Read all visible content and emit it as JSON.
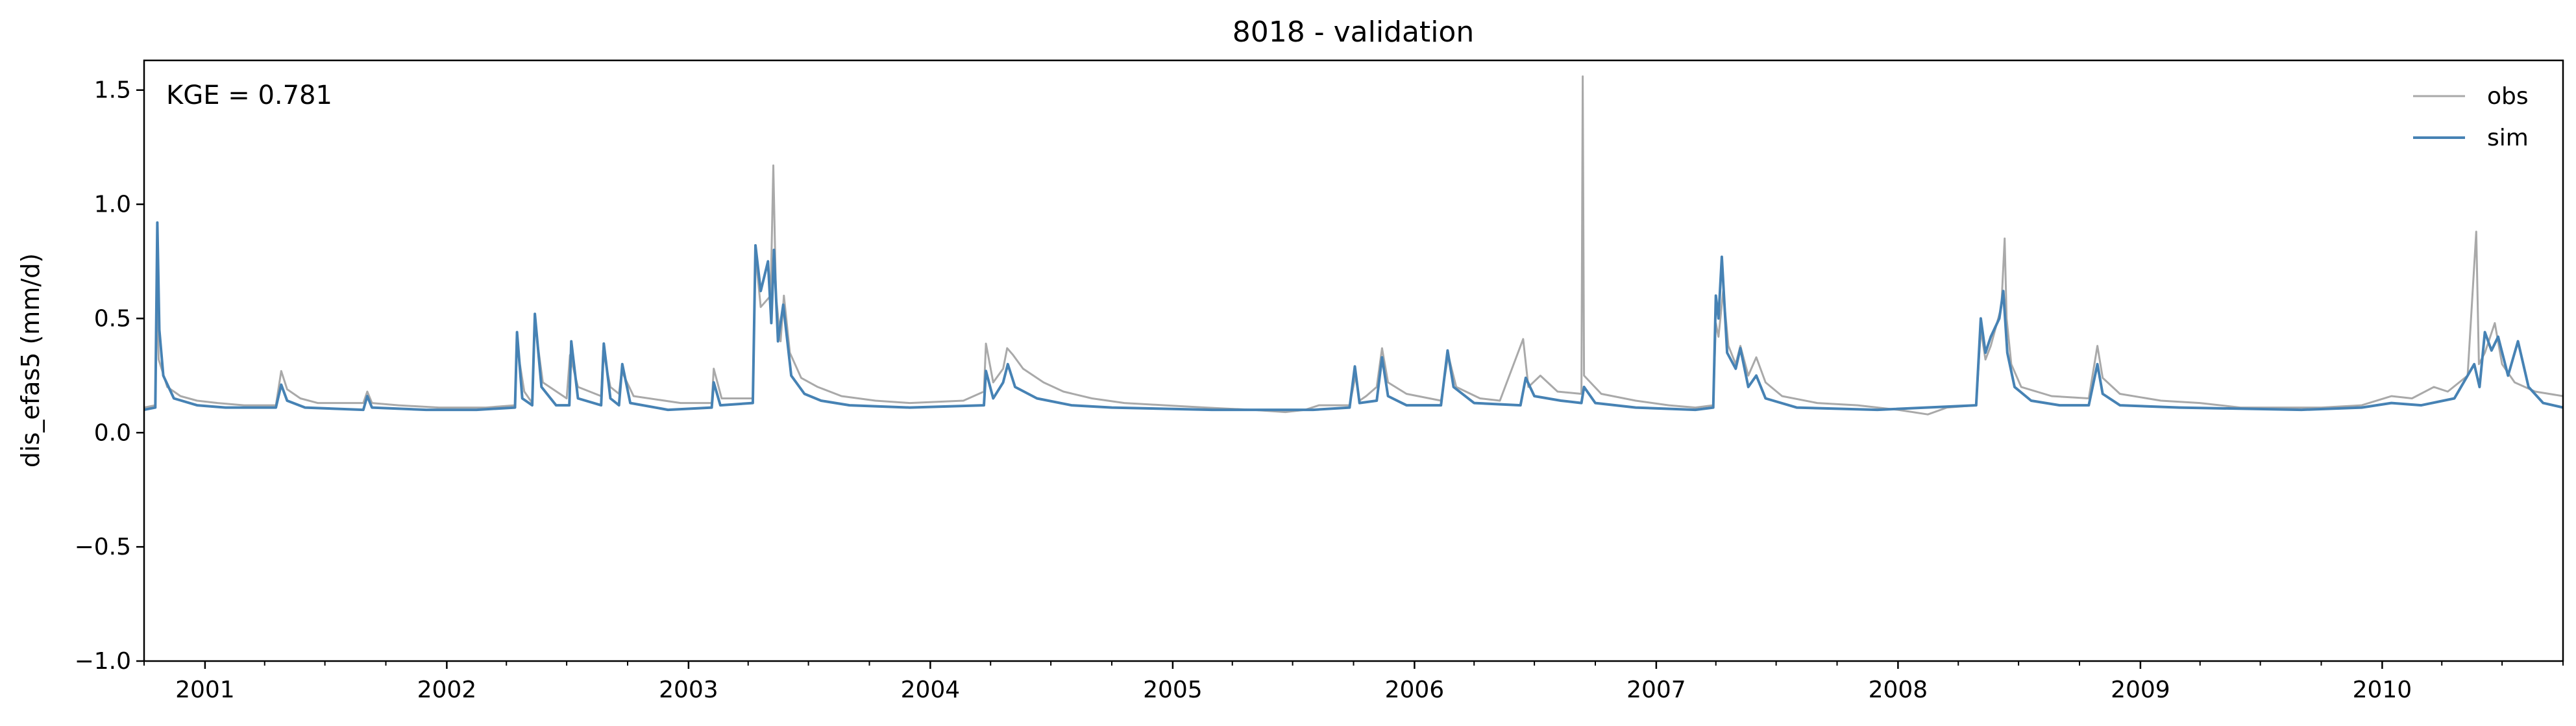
{
  "chart_data": {
    "type": "line",
    "title": "8018 - validation",
    "xlabel": "",
    "ylabel": "dis_efas5 (mm/d)",
    "annotation": "KGE = 0.781",
    "xlim": [
      "2000-10-01",
      "2010-10-01"
    ],
    "ylim": [
      -1.0,
      1.63
    ],
    "yticks": [
      -1.0,
      -0.5,
      0.0,
      0.5,
      1.0,
      1.5
    ],
    "ytick_labels": [
      "−1.0",
      "−0.5",
      "0.0",
      "0.5",
      "1.0",
      "1.5"
    ],
    "xticks": [
      "2001-01-01",
      "2002-01-01",
      "2003-01-01",
      "2004-01-01",
      "2005-01-01",
      "2006-01-01",
      "2007-01-01",
      "2008-01-01",
      "2009-01-01",
      "2010-01-01"
    ],
    "xtick_labels": [
      "2001",
      "2002",
      "2003",
      "2004",
      "2005",
      "2006",
      "2007",
      "2008",
      "2009",
      "2010"
    ],
    "grid": false,
    "legend_position": "top-right",
    "series": [
      {
        "name": "obs",
        "color": "#a9a9a9",
        "points": [
          [
            "2000-10-01",
            0.11
          ],
          [
            "2000-10-18",
            0.12
          ],
          [
            "2000-10-20",
            0.62
          ],
          [
            "2000-10-23",
            0.32
          ],
          [
            "2000-11-05",
            0.2
          ],
          [
            "2000-11-25",
            0.16
          ],
          [
            "2000-12-20",
            0.14
          ],
          [
            "2001-01-20",
            0.13
          ],
          [
            "2001-03-01",
            0.12
          ],
          [
            "2001-04-18",
            0.12
          ],
          [
            "2001-04-26",
            0.27
          ],
          [
            "2001-05-05",
            0.19
          ],
          [
            "2001-05-25",
            0.15
          ],
          [
            "2001-06-20",
            0.13
          ],
          [
            "2001-08-28",
            0.13
          ],
          [
            "2001-09-03",
            0.18
          ],
          [
            "2001-09-10",
            0.13
          ],
          [
            "2001-10-20",
            0.12
          ],
          [
            "2001-12-20",
            0.11
          ],
          [
            "2002-03-01",
            0.11
          ],
          [
            "2002-04-14",
            0.12
          ],
          [
            "2002-04-17",
            0.38
          ],
          [
            "2002-04-28",
            0.18
          ],
          [
            "2002-05-10",
            0.13
          ],
          [
            "2002-05-14",
            0.48
          ],
          [
            "2002-05-26",
            0.22
          ],
          [
            "2002-07-01",
            0.15
          ],
          [
            "2002-07-06",
            0.34
          ],
          [
            "2002-07-18",
            0.2
          ],
          [
            "2002-08-22",
            0.16
          ],
          [
            "2002-08-25",
            0.36
          ],
          [
            "2002-09-05",
            0.2
          ],
          [
            "2002-09-18",
            0.17
          ],
          [
            "2002-09-22",
            0.27
          ],
          [
            "2002-10-10",
            0.16
          ],
          [
            "2002-12-20",
            0.13
          ],
          [
            "2003-02-05",
            0.13
          ],
          [
            "2003-02-08",
            0.28
          ],
          [
            "2003-02-20",
            0.15
          ],
          [
            "2003-04-08",
            0.15
          ],
          [
            "2003-04-12",
            0.78
          ],
          [
            "2003-04-20",
            0.55
          ],
          [
            "2003-05-05",
            0.6
          ],
          [
            "2003-05-09",
            1.17
          ],
          [
            "2003-05-13",
            0.6
          ],
          [
            "2003-05-20",
            0.4
          ],
          [
            "2003-05-25",
            0.6
          ],
          [
            "2003-06-03",
            0.35
          ],
          [
            "2003-06-20",
            0.24
          ],
          [
            "2003-07-15",
            0.2
          ],
          [
            "2003-08-20",
            0.16
          ],
          [
            "2003-10-10",
            0.14
          ],
          [
            "2003-12-01",
            0.13
          ],
          [
            "2004-02-20",
            0.14
          ],
          [
            "2004-03-22",
            0.18
          ],
          [
            "2004-03-25",
            0.39
          ],
          [
            "2004-04-05",
            0.22
          ],
          [
            "2004-04-20",
            0.28
          ],
          [
            "2004-04-26",
            0.37
          ],
          [
            "2004-05-05",
            0.34
          ],
          [
            "2004-05-20",
            0.28
          ],
          [
            "2004-06-20",
            0.22
          ],
          [
            "2004-07-20",
            0.18
          ],
          [
            "2004-09-01",
            0.15
          ],
          [
            "2004-10-20",
            0.13
          ],
          [
            "2004-12-20",
            0.12
          ],
          [
            "2005-02-20",
            0.11
          ],
          [
            "2005-05-01",
            0.1
          ],
          [
            "2005-06-20",
            0.09
          ],
          [
            "2005-07-20",
            0.1
          ],
          [
            "2005-08-10",
            0.12
          ],
          [
            "2005-09-25",
            0.12
          ],
          [
            "2005-10-04",
            0.25
          ],
          [
            "2005-10-10",
            0.14
          ],
          [
            "2005-10-20",
            0.16
          ],
          [
            "2005-11-05",
            0.2
          ],
          [
            "2005-11-13",
            0.37
          ],
          [
            "2005-11-22",
            0.22
          ],
          [
            "2005-12-20",
            0.17
          ],
          [
            "2006-02-10",
            0.14
          ],
          [
            "2006-02-21",
            0.34
          ],
          [
            "2006-03-05",
            0.2
          ],
          [
            "2006-04-10",
            0.15
          ],
          [
            "2006-05-10",
            0.14
          ],
          [
            "2006-06-14",
            0.41
          ],
          [
            "2006-06-22",
            0.2
          ],
          [
            "2006-07-10",
            0.25
          ],
          [
            "2006-08-05",
            0.18
          ],
          [
            "2006-09-10",
            0.17
          ],
          [
            "2006-09-12",
            1.56
          ],
          [
            "2006-09-14",
            0.25
          ],
          [
            "2006-10-10",
            0.17
          ],
          [
            "2006-12-01",
            0.14
          ],
          [
            "2007-01-20",
            0.12
          ],
          [
            "2007-03-01",
            0.11
          ],
          [
            "2007-03-28",
            0.12
          ],
          [
            "2007-04-01",
            0.48
          ],
          [
            "2007-04-05",
            0.42
          ],
          [
            "2007-04-12",
            0.62
          ],
          [
            "2007-04-20",
            0.38
          ],
          [
            "2007-05-01",
            0.3
          ],
          [
            "2007-05-08",
            0.38
          ],
          [
            "2007-05-20",
            0.25
          ],
          [
            "2007-06-01",
            0.33
          ],
          [
            "2007-06-15",
            0.22
          ],
          [
            "2007-07-10",
            0.16
          ],
          [
            "2007-09-01",
            0.13
          ],
          [
            "2007-11-01",
            0.12
          ],
          [
            "2008-01-01",
            0.1
          ],
          [
            "2008-02-15",
            0.08
          ],
          [
            "2008-03-15",
            0.11
          ],
          [
            "2008-04-28",
            0.12
          ],
          [
            "2008-05-05",
            0.45
          ],
          [
            "2008-05-12",
            0.32
          ],
          [
            "2008-05-20",
            0.38
          ],
          [
            "2008-06-05",
            0.55
          ],
          [
            "2008-06-10",
            0.85
          ],
          [
            "2008-06-13",
            0.5
          ],
          [
            "2008-06-20",
            0.3
          ],
          [
            "2008-07-05",
            0.2
          ],
          [
            "2008-08-20",
            0.16
          ],
          [
            "2008-10-15",
            0.15
          ],
          [
            "2008-10-28",
            0.38
          ],
          [
            "2008-11-05",
            0.24
          ],
          [
            "2008-12-01",
            0.17
          ],
          [
            "2009-02-01",
            0.14
          ],
          [
            "2009-04-01",
            0.13
          ],
          [
            "2009-06-01",
            0.11
          ],
          [
            "2009-08-01",
            0.11
          ],
          [
            "2009-10-01",
            0.11
          ],
          [
            "2009-12-01",
            0.12
          ],
          [
            "2010-01-15",
            0.16
          ],
          [
            "2010-02-15",
            0.15
          ],
          [
            "2010-03-20",
            0.2
          ],
          [
            "2010-04-10",
            0.18
          ],
          [
            "2010-05-10",
            0.25
          ],
          [
            "2010-05-23",
            0.88
          ],
          [
            "2010-05-27",
            0.3
          ],
          [
            "2010-06-05",
            0.35
          ],
          [
            "2010-06-20",
            0.48
          ],
          [
            "2010-07-01",
            0.3
          ],
          [
            "2010-07-20",
            0.22
          ],
          [
            "2010-08-20",
            0.18
          ],
          [
            "2010-10-01",
            0.16
          ]
        ]
      },
      {
        "name": "sim",
        "color": "#4682b4",
        "points": [
          [
            "2000-10-01",
            0.1
          ],
          [
            "2000-10-18",
            0.11
          ],
          [
            "2000-10-21",
            0.92
          ],
          [
            "2000-10-24",
            0.45
          ],
          [
            "2000-10-30",
            0.25
          ],
          [
            "2000-11-15",
            0.15
          ],
          [
            "2000-12-20",
            0.12
          ],
          [
            "2001-02-01",
            0.11
          ],
          [
            "2001-04-18",
            0.11
          ],
          [
            "2001-04-26",
            0.21
          ],
          [
            "2001-05-05",
            0.14
          ],
          [
            "2001-06-01",
            0.11
          ],
          [
            "2001-08-28",
            0.1
          ],
          [
            "2001-09-03",
            0.16
          ],
          [
            "2001-09-10",
            0.11
          ],
          [
            "2001-12-01",
            0.1
          ],
          [
            "2002-02-15",
            0.1
          ],
          [
            "2002-04-14",
            0.11
          ],
          [
            "2002-04-17",
            0.44
          ],
          [
            "2002-04-25",
            0.15
          ],
          [
            "2002-05-10",
            0.12
          ],
          [
            "2002-05-14",
            0.52
          ],
          [
            "2002-05-24",
            0.2
          ],
          [
            "2002-06-15",
            0.12
          ],
          [
            "2002-07-05",
            0.12
          ],
          [
            "2002-07-08",
            0.4
          ],
          [
            "2002-07-18",
            0.15
          ],
          [
            "2002-08-22",
            0.12
          ],
          [
            "2002-08-26",
            0.39
          ],
          [
            "2002-09-05",
            0.15
          ],
          [
            "2002-09-18",
            0.12
          ],
          [
            "2002-09-23",
            0.3
          ],
          [
            "2002-10-05",
            0.13
          ],
          [
            "2002-12-01",
            0.1
          ],
          [
            "2003-02-05",
            0.11
          ],
          [
            "2003-02-08",
            0.22
          ],
          [
            "2003-02-18",
            0.12
          ],
          [
            "2003-04-08",
            0.13
          ],
          [
            "2003-04-12",
            0.82
          ],
          [
            "2003-04-20",
            0.62
          ],
          [
            "2003-05-01",
            0.75
          ],
          [
            "2003-05-06",
            0.48
          ],
          [
            "2003-05-10",
            0.8
          ],
          [
            "2003-05-16",
            0.4
          ],
          [
            "2003-05-24",
            0.56
          ],
          [
            "2003-06-05",
            0.25
          ],
          [
            "2003-06-25",
            0.17
          ],
          [
            "2003-07-20",
            0.14
          ],
          [
            "2003-09-01",
            0.12
          ],
          [
            "2003-12-01",
            0.11
          ],
          [
            "2004-03-22",
            0.12
          ],
          [
            "2004-03-25",
            0.27
          ],
          [
            "2004-04-05",
            0.15
          ],
          [
            "2004-04-20",
            0.22
          ],
          [
            "2004-04-27",
            0.3
          ],
          [
            "2004-05-08",
            0.2
          ],
          [
            "2004-06-10",
            0.15
          ],
          [
            "2004-08-01",
            0.12
          ],
          [
            "2004-10-01",
            0.11
          ],
          [
            "2005-03-01",
            0.1
          ],
          [
            "2005-08-01",
            0.1
          ],
          [
            "2005-09-25",
            0.11
          ],
          [
            "2005-10-03",
            0.29
          ],
          [
            "2005-10-10",
            0.13
          ],
          [
            "2005-11-05",
            0.14
          ],
          [
            "2005-11-13",
            0.33
          ],
          [
            "2005-11-22",
            0.16
          ],
          [
            "2005-12-20",
            0.12
          ],
          [
            "2006-02-10",
            0.12
          ],
          [
            "2006-02-20",
            0.36
          ],
          [
            "2006-03-01",
            0.2
          ],
          [
            "2006-04-01",
            0.13
          ],
          [
            "2006-06-10",
            0.12
          ],
          [
            "2006-06-18",
            0.24
          ],
          [
            "2006-07-01",
            0.16
          ],
          [
            "2006-08-10",
            0.14
          ],
          [
            "2006-09-10",
            0.13
          ],
          [
            "2006-09-14",
            0.2
          ],
          [
            "2006-10-01",
            0.13
          ],
          [
            "2006-12-01",
            0.11
          ],
          [
            "2007-03-01",
            0.1
          ],
          [
            "2007-03-28",
            0.11
          ],
          [
            "2007-04-01",
            0.6
          ],
          [
            "2007-04-05",
            0.5
          ],
          [
            "2007-04-10",
            0.77
          ],
          [
            "2007-04-18",
            0.35
          ],
          [
            "2007-05-01",
            0.28
          ],
          [
            "2007-05-08",
            0.37
          ],
          [
            "2007-05-20",
            0.2
          ],
          [
            "2007-06-01",
            0.25
          ],
          [
            "2007-06-15",
            0.15
          ],
          [
            "2007-08-01",
            0.11
          ],
          [
            "2007-12-01",
            0.1
          ],
          [
            "2008-04-28",
            0.12
          ],
          [
            "2008-05-05",
            0.5
          ],
          [
            "2008-05-12",
            0.35
          ],
          [
            "2008-05-20",
            0.42
          ],
          [
            "2008-06-02",
            0.5
          ],
          [
            "2008-06-08",
            0.62
          ],
          [
            "2008-06-14",
            0.35
          ],
          [
            "2008-06-25",
            0.2
          ],
          [
            "2008-07-20",
            0.14
          ],
          [
            "2008-09-01",
            0.12
          ],
          [
            "2008-10-15",
            0.12
          ],
          [
            "2008-10-28",
            0.3
          ],
          [
            "2008-11-05",
            0.17
          ],
          [
            "2008-12-01",
            0.12
          ],
          [
            "2009-03-01",
            0.11
          ],
          [
            "2009-09-01",
            0.1
          ],
          [
            "2009-12-01",
            0.11
          ],
          [
            "2010-01-15",
            0.13
          ],
          [
            "2010-03-01",
            0.12
          ],
          [
            "2010-04-20",
            0.15
          ],
          [
            "2010-05-20",
            0.3
          ],
          [
            "2010-05-28",
            0.2
          ],
          [
            "2010-06-05",
            0.44
          ],
          [
            "2010-06-15",
            0.36
          ],
          [
            "2010-06-25",
            0.42
          ],
          [
            "2010-07-10",
            0.25
          ],
          [
            "2010-07-25",
            0.4
          ],
          [
            "2010-08-10",
            0.2
          ],
          [
            "2010-09-01",
            0.13
          ],
          [
            "2010-10-01",
            0.11
          ]
        ]
      }
    ]
  }
}
